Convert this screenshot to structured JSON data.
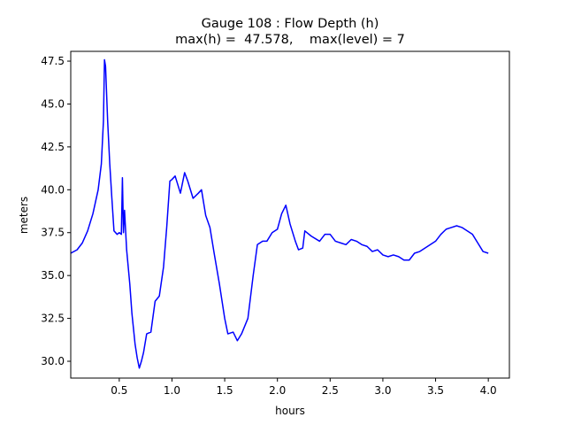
{
  "chart_data": {
    "type": "line",
    "title": "Gauge 108 : Flow Depth (h)",
    "subtitle": "max(h) =  47.578,    max(level) = 7",
    "x_label": "hours",
    "y_label": "meters",
    "x": [
      0.04,
      0.1,
      0.15,
      0.2,
      0.25,
      0.3,
      0.33,
      0.35,
      0.36,
      0.37,
      0.39,
      0.41,
      0.43,
      0.45,
      0.48,
      0.5,
      0.52,
      0.53,
      0.54,
      0.55,
      0.57,
      0.6,
      0.62,
      0.65,
      0.67,
      0.69,
      0.71,
      0.73,
      0.76,
      0.8,
      0.84,
      0.88,
      0.92,
      0.95,
      0.98,
      1.0,
      1.03,
      1.05,
      1.08,
      1.12,
      1.15,
      1.2,
      1.25,
      1.28,
      1.32,
      1.36,
      1.4,
      1.45,
      1.5,
      1.53,
      1.58,
      1.62,
      1.66,
      1.72,
      1.77,
      1.81,
      1.86,
      1.9,
      1.95,
      2.0,
      2.04,
      2.08,
      2.12,
      2.17,
      2.2,
      2.24,
      2.26,
      2.32,
      2.4,
      2.45,
      2.5,
      2.55,
      2.6,
      2.65,
      2.7,
      2.75,
      2.8,
      2.85,
      2.9,
      2.95,
      3.0,
      3.05,
      3.1,
      3.15,
      3.2,
      3.25,
      3.3,
      3.35,
      3.4,
      3.45,
      3.5,
      3.55,
      3.6,
      3.65,
      3.7,
      3.75,
      3.8,
      3.85,
      3.9,
      3.95,
      4.0
    ],
    "series": [
      {
        "name": "h",
        "color": "#0000ff",
        "values": [
          36.3,
          36.5,
          36.9,
          37.6,
          38.6,
          40.0,
          41.5,
          44.0,
          47.578,
          47.2,
          44.0,
          41.5,
          39.5,
          37.6,
          37.4,
          37.5,
          37.4,
          40.7,
          37.5,
          38.8,
          36.5,
          34.5,
          32.8,
          31.0,
          30.2,
          29.6,
          30.0,
          30.5,
          31.6,
          31.7,
          33.5,
          33.8,
          35.5,
          37.8,
          40.5,
          40.6,
          40.8,
          40.4,
          39.8,
          41.0,
          40.5,
          39.5,
          39.8,
          40.0,
          38.5,
          37.8,
          36.3,
          34.5,
          32.5,
          31.6,
          31.7,
          31.2,
          31.6,
          32.5,
          35.0,
          36.8,
          37.0,
          37.0,
          37.5,
          37.7,
          38.6,
          39.1,
          38.0,
          37.0,
          36.5,
          36.6,
          37.6,
          37.3,
          37.0,
          37.4,
          37.4,
          37.0,
          36.9,
          36.8,
          37.1,
          37.0,
          36.8,
          36.7,
          36.4,
          36.5,
          36.2,
          36.1,
          36.2,
          36.1,
          35.9,
          35.9,
          36.3,
          36.4,
          36.6,
          36.8,
          37.0,
          37.4,
          37.7,
          37.8,
          37.9,
          37.8,
          37.6,
          37.4,
          36.9,
          36.4,
          36.3
        ]
      }
    ],
    "xlim": [
      0.04,
      4.2
    ],
    "ylim": [
      29.02,
      48.07
    ],
    "xticks": [
      0.5,
      {
        "value": 1.0,
        "label": "1.0"
      },
      1.5,
      {
        "value": 2.0,
        "label": "2.0"
      },
      2.5,
      {
        "value": 3.0,
        "label": "3.0"
      },
      3.5,
      {
        "value": 4.0,
        "label": "4.0"
      }
    ],
    "yticks": [
      {
        "value": 30.0,
        "label": "30.0"
      },
      32.5,
      {
        "value": 35.0,
        "label": "35.0"
      },
      37.5,
      {
        "value": 40.0,
        "label": "40.0"
      },
      42.5,
      {
        "value": 45.0,
        "label": "45.0"
      },
      47.5
    ],
    "grid": false
  }
}
